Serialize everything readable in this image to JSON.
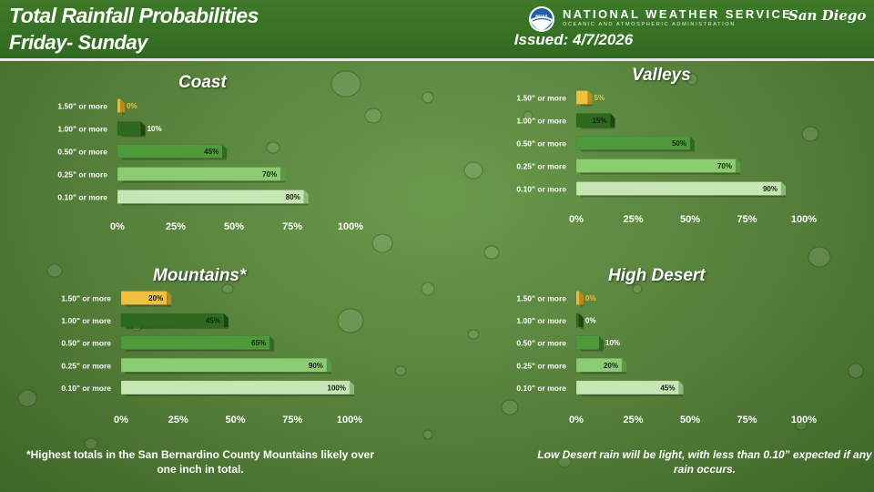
{
  "header": {
    "title_line1": "Total Rainfall Probabilities",
    "title_line2": "Friday- Sunday",
    "agency": "NATIONAL WEATHER SERVICE",
    "agency_sub": "OCEANIC AND ATMOSPHERIC ADMINISTRATION",
    "office": "San Diego",
    "issued": "Issued: 4/7/2026",
    "logo_text": "NOAA"
  },
  "colors": {
    "bar_150": "#f0c040",
    "bar_100": "#2e6a1e",
    "bar_050": "#4e9a3a",
    "bar_025": "#8ccc70",
    "bar_010": "#c6e6b4"
  },
  "chart_data": [
    {
      "type": "bar",
      "orientation": "horizontal",
      "title": "Coast",
      "categories": [
        "1.50\" or more",
        "1.00\" or more",
        "0.50\" or more",
        "0.25\" or more",
        "0.10\" or more"
      ],
      "values": [
        0,
        10,
        45,
        70,
        80
      ],
      "value_labels": [
        "0%",
        "10%",
        "45%",
        "70%",
        "80%"
      ],
      "xlim": [
        0,
        100
      ],
      "xticks": [
        "0%",
        "25%",
        "50%",
        "75%",
        "100%"
      ]
    },
    {
      "type": "bar",
      "orientation": "horizontal",
      "title": "Valleys",
      "categories": [
        "1.50\" or more",
        "1.00\" or more",
        "0.50\" or more",
        "0.25\" or more",
        "0.10\" or more"
      ],
      "values": [
        5,
        15,
        50,
        70,
        90
      ],
      "value_labels": [
        "5%",
        "15%",
        "50%",
        "70%",
        "90%"
      ],
      "xlim": [
        0,
        100
      ],
      "xticks": [
        "0%",
        "25%",
        "50%",
        "75%",
        "100%"
      ]
    },
    {
      "type": "bar",
      "orientation": "horizontal",
      "title": "Mountains*",
      "categories": [
        "1.50\" or more",
        "1.00\" or more",
        "0.50\" or more",
        "0.25\" or more",
        "0.10\" or more"
      ],
      "values": [
        20,
        45,
        65,
        90,
        100
      ],
      "value_labels": [
        "20%",
        "45%",
        "65%",
        "90%",
        "100%"
      ],
      "xlim": [
        0,
        100
      ],
      "xticks": [
        "0%",
        "25%",
        "50%",
        "75%",
        "100%"
      ]
    },
    {
      "type": "bar",
      "orientation": "horizontal",
      "title": "High Desert",
      "categories": [
        "1.50\" or more",
        "1.00\" or more",
        "0.50\" or more",
        "0.25\" or more",
        "0.10\" or more"
      ],
      "values": [
        0,
        0,
        10,
        20,
        45
      ],
      "value_labels": [
        "0%",
        "0%",
        "10%",
        "20%",
        "45%"
      ],
      "xlim": [
        0,
        100
      ],
      "xticks": [
        "0%",
        "25%",
        "50%",
        "75%",
        "100%"
      ]
    }
  ],
  "footnotes": {
    "left": "*Highest totals in the San Bernardino County Mountains likely over one inch in total.",
    "right": "Low Desert rain will be light, with less than 0.10” expected if any rain occurs."
  }
}
